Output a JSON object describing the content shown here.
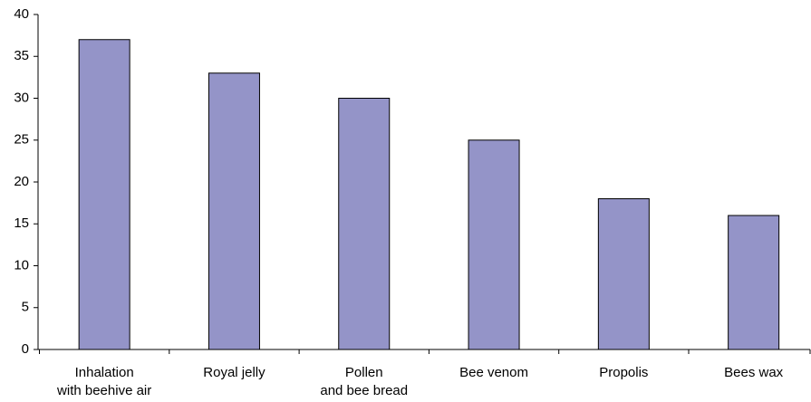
{
  "chart_data": {
    "type": "bar",
    "categories": [
      "Inhalation\nwith beehive air",
      "Royal jelly",
      "Pollen\nand bee bread",
      "Bee venom",
      "Propolis",
      "Bees wax"
    ],
    "values": [
      37,
      33,
      30,
      25,
      18,
      16
    ],
    "color": "#9494c8",
    "ylim": [
      0,
      40
    ],
    "yticks": [
      0,
      5,
      10,
      15,
      20,
      25,
      30,
      35,
      40
    ],
    "grid": false
  }
}
